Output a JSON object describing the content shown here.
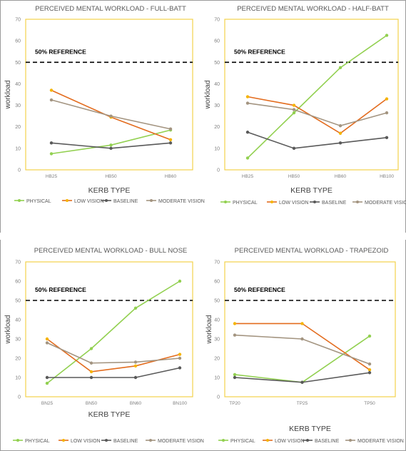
{
  "chart_data": [
    {
      "type": "line",
      "title": "PERCEIVED MENTAL WORKLOAD - FULL-BATT",
      "xlabel": "KERB TYPE",
      "ylabel": "workload",
      "ylim": [
        0,
        70
      ],
      "yticks": [
        0,
        10,
        20,
        30,
        40,
        50,
        60,
        70
      ],
      "categories": [
        "HB25",
        "HB50",
        "HB60"
      ],
      "reference": {
        "label": "50% REFERENCE",
        "value": 50
      },
      "legend_position": "bottom",
      "series": [
        {
          "name": "PHYSICAL",
          "color": "#92d050",
          "values": [
            7.5,
            11.5,
            18.5
          ]
        },
        {
          "name": "LOW VISION",
          "color": "#e36c1e",
          "values": [
            37,
            24.5,
            14
          ]
        },
        {
          "name": "BASELINE",
          "color": "#595959",
          "values": [
            12.5,
            10,
            12.5
          ]
        },
        {
          "name": "MODERATE VISION",
          "color": "#a39480",
          "values": [
            32.5,
            25,
            19
          ]
        }
      ]
    },
    {
      "type": "line",
      "title": "PERCEIVED MENTAL WORKLOAD - HALF-BATT",
      "xlabel": "KERB TYPE",
      "ylabel": "workload",
      "ylim": [
        0,
        70
      ],
      "yticks": [
        0,
        10,
        20,
        30,
        40,
        50,
        60,
        70
      ],
      "categories": [
        "HB25",
        "HB50",
        "HB60",
        "HB100"
      ],
      "reference": {
        "label": "50% REFERENCE",
        "value": 50
      },
      "legend_position": "bottom",
      "series": [
        {
          "name": "PHYSICAL",
          "color": "#92d050",
          "values": [
            5.5,
            26.5,
            47.5,
            62.5
          ]
        },
        {
          "name": "LOW VISION",
          "color": "#e36c1e",
          "values": [
            34,
            30,
            17,
            33
          ]
        },
        {
          "name": "BASELINE",
          "color": "#595959",
          "values": [
            17.5,
            10,
            12.5,
            15
          ]
        },
        {
          "name": "MODERATE VISION",
          "color": "#a39480",
          "values": [
            31,
            28,
            20.5,
            26.5
          ]
        }
      ]
    },
    {
      "type": "line",
      "title": "PERCEIVED MENTAL WORKLOAD - BULL NOSE",
      "xlabel": "KERB TYPE",
      "ylabel": "workload",
      "ylim": [
        0,
        70
      ],
      "yticks": [
        0,
        10,
        20,
        30,
        40,
        50,
        60,
        70
      ],
      "categories": [
        "BN25",
        "BN50",
        "BN60",
        "BN100"
      ],
      "reference": {
        "label": "50% REFERENCE",
        "value": 50
      },
      "legend_position": "bottom",
      "series": [
        {
          "name": "PHYSICAL",
          "color": "#92d050",
          "values": [
            7,
            25,
            46,
            60
          ]
        },
        {
          "name": "LOW VISION",
          "color": "#e36c1e",
          "values": [
            30,
            13,
            16,
            22
          ]
        },
        {
          "name": "BASELINE",
          "color": "#595959",
          "values": [
            10,
            10,
            10,
            15
          ]
        },
        {
          "name": "MODERATE VISION",
          "color": "#a39480",
          "values": [
            28,
            17.5,
            18,
            20
          ]
        }
      ]
    },
    {
      "type": "line",
      "title": "PERCEIVED MENTAL WORKLOAD - TRAPEZOID",
      "xlabel": "KERB TYPE",
      "ylabel": "workload",
      "ylim": [
        0,
        70
      ],
      "yticks": [
        0,
        10,
        20,
        30,
        40,
        50,
        60,
        70
      ],
      "categories": [
        "TP20",
        "TP25",
        "TP50"
      ],
      "reference": {
        "label": "50% REFERENCE",
        "value": 50
      },
      "legend_position": "bottom",
      "series": [
        {
          "name": "PHYSICAL",
          "color": "#92d050",
          "values": [
            11.5,
            7.5,
            31.5
          ]
        },
        {
          "name": "LOW VISION",
          "color": "#e36c1e",
          "values": [
            38,
            38,
            14
          ]
        },
        {
          "name": "BASELINE",
          "color": "#595959",
          "values": [
            10,
            7.5,
            12.5
          ]
        },
        {
          "name": "MODERATE VISION",
          "color": "#a39480",
          "values": [
            32,
            30,
            17
          ]
        }
      ]
    }
  ]
}
